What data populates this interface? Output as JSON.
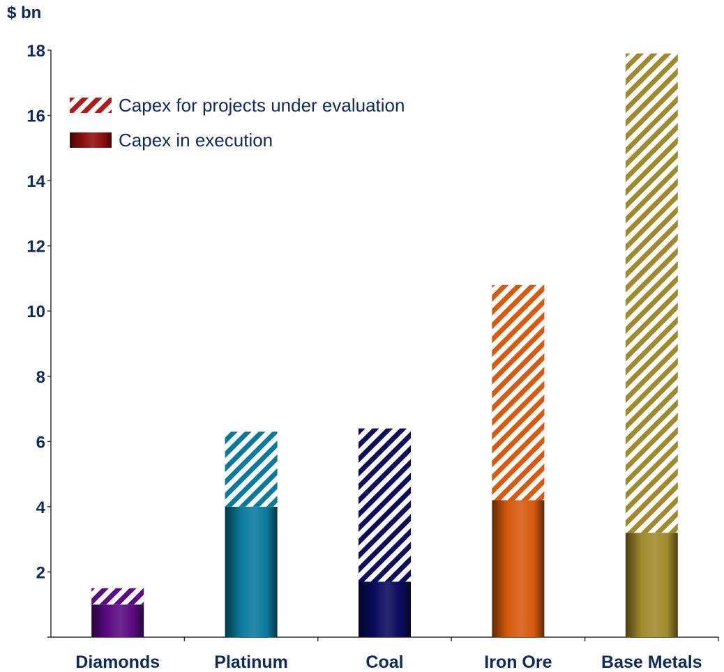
{
  "chart_data": {
    "type": "bar",
    "stacked": true,
    "unit_label": "$ bn",
    "categories": [
      "Diamonds",
      "Platinum",
      "Coal",
      "Iron Ore",
      "Base Metals"
    ],
    "series": [
      {
        "name": "Capex in execution",
        "style": "solid",
        "values": [
          1.0,
          4.0,
          1.7,
          4.2,
          3.2
        ]
      },
      {
        "name": "Capex for projects under evaluation",
        "style": "hatched",
        "values": [
          0.5,
          2.3,
          4.7,
          6.6,
          14.7
        ]
      }
    ],
    "category_colors": {
      "Diamonds": "#5a0a82",
      "Platinum": "#0a7a9c",
      "Coal": "#0b0b5e",
      "Iron Ore": "#d75a0f",
      "Base Metals": "#a08a2c"
    },
    "legend_colors": {
      "solid": "#8f0d0d",
      "hatched": "#b01a1a"
    },
    "ylim": [
      0,
      18
    ],
    "yticks": [
      "2",
      "4",
      "6",
      "8",
      "10",
      "12",
      "14",
      "16",
      "18"
    ],
    "grid": false,
    "legend_position": "top-left"
  }
}
